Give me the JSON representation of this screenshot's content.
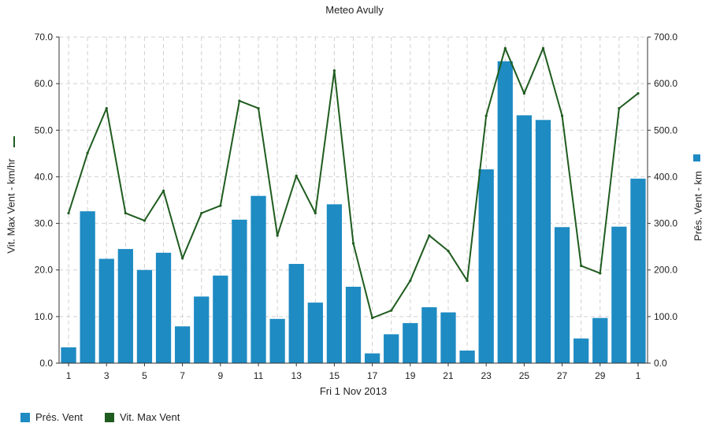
{
  "colors": {
    "bar": "#1e8bc3",
    "line": "#1f5c1f",
    "grid": "#d0d0d0",
    "axis": "#333333"
  },
  "legend": {
    "bar_label": "Prés. Vent",
    "line_label": "Vit. Max Vent"
  },
  "chart_data": {
    "type": "bar",
    "title": "Meteo  Avully",
    "xlabel": "Fri 1 Nov 2013",
    "ylabel": "Vit. Max Vent - km/hr",
    "y2label": "Prés. Vent - km",
    "ylim": [
      0,
      70
    ],
    "y2lim": [
      0,
      700
    ],
    "yticks": [
      "0.0",
      "10.0",
      "20.0",
      "30.0",
      "40.0",
      "50.0",
      "60.0",
      "70.0"
    ],
    "y2ticks": [
      "0.0",
      "100.0",
      "200.0",
      "300.0",
      "400.0",
      "500.0",
      "600.0",
      "700.0"
    ],
    "xticks": [
      "1",
      "3",
      "5",
      "7",
      "9",
      "11",
      "13",
      "15",
      "17",
      "19",
      "21",
      "23",
      "25",
      "27",
      "29",
      "1"
    ],
    "grid": true,
    "legend_position": "bottom-left",
    "categories": [
      "1",
      "2",
      "3",
      "4",
      "5",
      "6",
      "7",
      "8",
      "9",
      "10",
      "11",
      "12",
      "13",
      "14",
      "15",
      "16",
      "17",
      "18",
      "19",
      "20",
      "21",
      "22",
      "23",
      "24",
      "25",
      "26",
      "27",
      "28",
      "29",
      "30",
      "1"
    ],
    "series": [
      {
        "name": "Prés. Vent",
        "type": "bar",
        "axis": "right",
        "values": [
          34,
          326,
          224,
          245,
          200,
          237,
          79,
          143,
          188,
          308,
          359,
          95,
          213,
          130,
          341,
          164,
          21,
          62,
          86,
          120,
          109,
          27,
          416,
          648,
          532,
          522,
          292,
          53,
          97,
          293,
          396
        ]
      },
      {
        "name": "Vit. Max Vent",
        "type": "line",
        "axis": "left",
        "values": [
          32.2,
          45.1,
          54.7,
          32.2,
          30.6,
          37.0,
          22.5,
          32.2,
          33.8,
          56.3,
          54.7,
          27.4,
          40.2,
          32.2,
          62.8,
          25.7,
          9.7,
          11.3,
          17.7,
          27.4,
          24.1,
          17.7,
          53.1,
          67.6,
          57.9,
          67.6,
          53.1,
          20.9,
          19.3,
          54.7,
          57.9
        ]
      }
    ]
  }
}
